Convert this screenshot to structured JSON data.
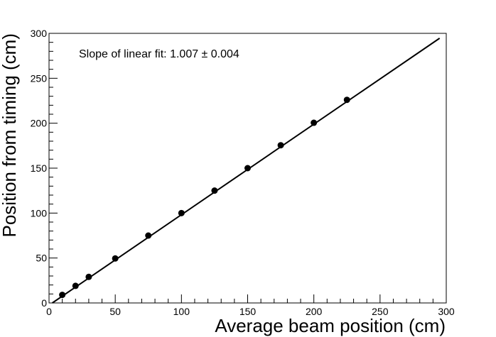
{
  "chart_data": {
    "type": "scatter",
    "xlabel": "Average beam position (cm)",
    "ylabel": "Position from timing (cm)",
    "xlim": [
      0,
      300
    ],
    "ylim": [
      0,
      300
    ],
    "xticks": [
      0,
      50,
      100,
      150,
      200,
      250,
      300
    ],
    "yticks": [
      0,
      50,
      100,
      150,
      200,
      250,
      300
    ],
    "grid": false,
    "annotation": "Slope of linear fit: 1.007 ± 0.004",
    "points": {
      "x": [
        10,
        20,
        30,
        50,
        75,
        100,
        125,
        150,
        175,
        200,
        225
      ],
      "y": [
        9,
        19,
        29,
        49.5,
        75,
        100,
        125,
        150,
        175.5,
        200.5,
        226
      ]
    },
    "fit_line": {
      "slope": 1.007,
      "intercept": -2.5,
      "x_range": [
        0,
        295
      ]
    },
    "colors": {
      "marker": "#000000",
      "line": "#000000",
      "axes": "#000000"
    }
  }
}
